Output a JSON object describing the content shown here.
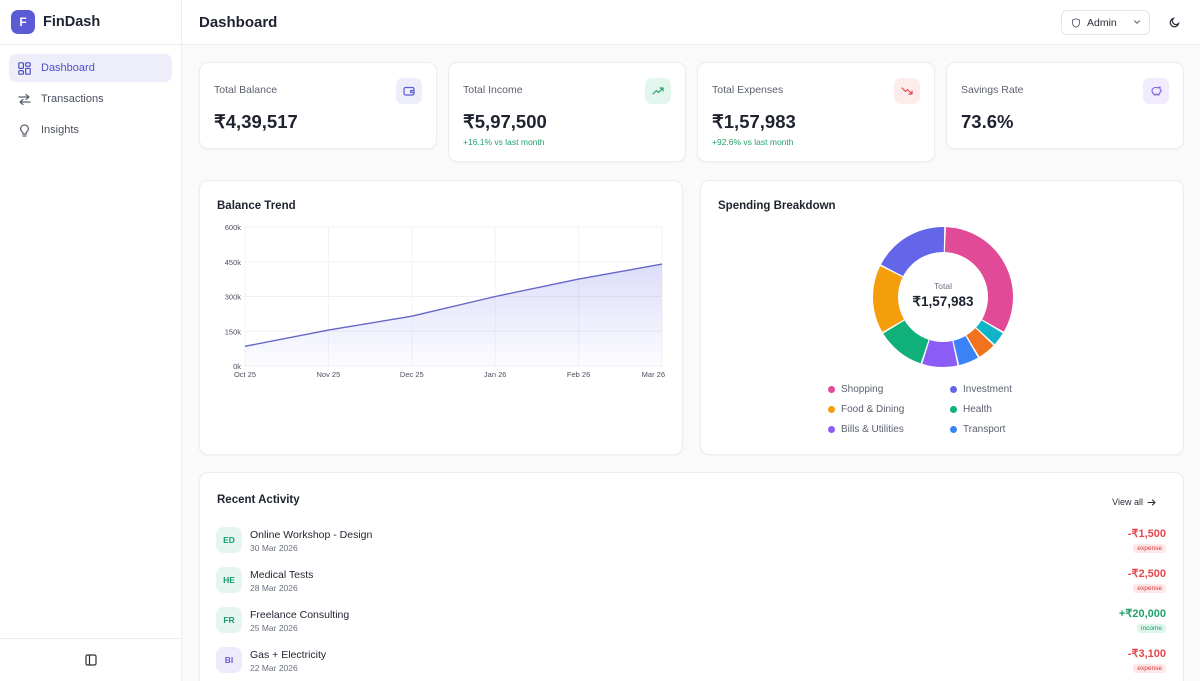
{
  "app": {
    "logo_letter": "F",
    "name": "FinDash"
  },
  "sidebar": {
    "items": [
      {
        "label": "Dashboard",
        "icon": "grid-icon",
        "active": true
      },
      {
        "label": "Transactions",
        "icon": "arrows-swap-icon",
        "active": false
      },
      {
        "label": "Insights",
        "icon": "lightbulb-icon",
        "active": false
      }
    ],
    "collapse_icon": "sidebar-collapse-icon"
  },
  "header": {
    "title": "Dashboard",
    "role": "Admin",
    "theme_icon": "moon-icon"
  },
  "stats": [
    {
      "label": "Total Balance",
      "value": "₹4,39,517",
      "sub": "",
      "icon": "wallet-icon"
    },
    {
      "label": "Total Income",
      "value": "₹5,97,500",
      "sub": "+16.1% vs last month",
      "icon": "trending-up-icon"
    },
    {
      "label": "Total Expenses",
      "value": "₹1,57,983",
      "sub": "+92.6% vs last month",
      "icon": "trending-down-icon"
    },
    {
      "label": "Savings Rate",
      "value": "73.6%",
      "sub": "",
      "icon": "piggy-bank-icon"
    }
  ],
  "colors": {
    "accent": "#5b5bd6",
    "income": "#22a06b",
    "expense": "#e5484d"
  },
  "balance_trend": {
    "title": "Balance Trend",
    "chart_data": {
      "type": "area",
      "categories": [
        "Oct 25",
        "Nov 25",
        "Dec 25",
        "Jan 26",
        "Feb 26",
        "Mar 26"
      ],
      "y_ticks": [
        "600k",
        "450k",
        "300k",
        "150k",
        "0k"
      ],
      "ylim": [
        0,
        600000
      ],
      "series": [
        {
          "values": [
            85000,
            155000,
            215000,
            300000,
            375000,
            440000
          ]
        }
      ],
      "grid": true
    }
  },
  "spending": {
    "title": "Spending Breakdown",
    "center_label": "Total",
    "center_value": "₹1,57,983",
    "chart_data": {
      "type": "pie",
      "slices": [
        {
          "name": "Shopping",
          "value": 33,
          "color": "#e04a97"
        },
        {
          "name": "Teal",
          "value": 3.5,
          "color": "#0fb5c7"
        },
        {
          "name": "Orange",
          "value": 4.5,
          "color": "#f2731f"
        },
        {
          "name": "Transport",
          "value": 5,
          "color": "#3b82f6"
        },
        {
          "name": "Bills & Utilities",
          "value": 8.5,
          "color": "#8b5cf6"
        },
        {
          "name": "Health",
          "value": 11.5,
          "color": "#10b07a"
        },
        {
          "name": "Food & Dining",
          "value": 16,
          "color": "#f59e0b"
        },
        {
          "name": "Investment",
          "value": 18,
          "color": "#6466e9"
        }
      ]
    },
    "legend": [
      {
        "label": "Shopping",
        "color": "#e04a97"
      },
      {
        "label": "Investment",
        "color": "#6466e9"
      },
      {
        "label": "Food & Dining",
        "color": "#f59e0b"
      },
      {
        "label": "Health",
        "color": "#10b07a"
      },
      {
        "label": "Bills & Utilities",
        "color": "#8b5cf6"
      },
      {
        "label": "Transport",
        "color": "#3b82f6"
      }
    ]
  },
  "activity": {
    "title": "Recent Activity",
    "view_all": "View all",
    "items": [
      {
        "initials": "ED",
        "title": "Online Workshop - Design",
        "date": "30 Mar 2026",
        "amount": "-₹1,500",
        "type": "expense"
      },
      {
        "initials": "HE",
        "title": "Medical Tests",
        "date": "28 Mar 2026",
        "amount": "-₹2,500",
        "type": "expense"
      },
      {
        "initials": "FR",
        "title": "Freelance Consulting",
        "date": "25 Mar 2026",
        "amount": "+₹20,000",
        "type": "income"
      },
      {
        "initials": "BI",
        "title": "Gas + Electricity",
        "date": "22 Mar 2026",
        "amount": "-₹3,100",
        "type": "expense"
      }
    ]
  }
}
